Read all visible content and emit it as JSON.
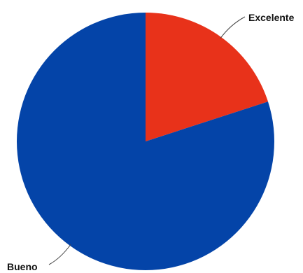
{
  "chart_data": {
    "type": "pie",
    "categories": [
      "Excelente",
      "Bueno"
    ],
    "values": [
      20,
      80
    ],
    "colors": [
      "#e8321a",
      "#0444a8"
    ],
    "title": "",
    "legend": "none"
  }
}
